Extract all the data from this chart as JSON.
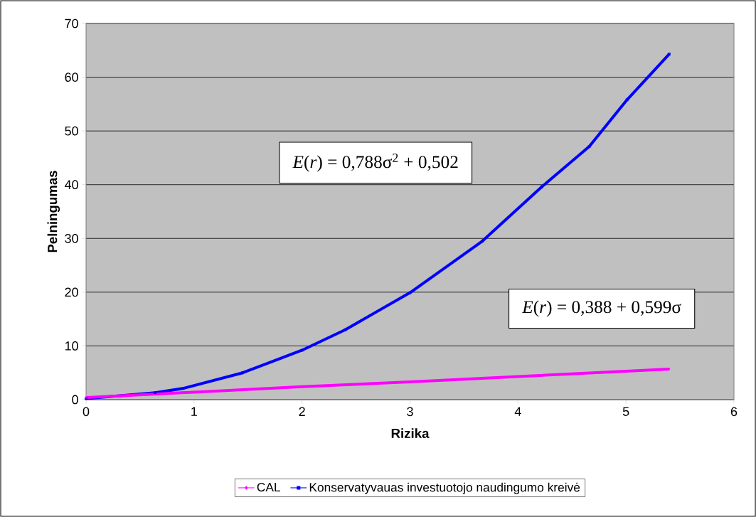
{
  "chart_data": {
    "type": "line",
    "xlabel": "Rizika",
    "ylabel": "Pelningumas",
    "xlim": [
      0,
      6
    ],
    "ylim": [
      0,
      70
    ],
    "xticks": [
      0,
      1,
      2,
      3,
      4,
      5,
      6
    ],
    "yticks": [
      0,
      10,
      20,
      30,
      40,
      50,
      60,
      70
    ],
    "grid": "y",
    "legend": "bottom",
    "line_style": "solid",
    "annotations": [
      "*E*(*r*) = 0,788σ$^{2}$ + 0,502",
      "*E*(*r*) = 0,388 + 0,599σ"
    ],
    "series": [
      {
        "name": "CAL",
        "color": "#ff00ff",
        "marker": "diamond",
        "x": [
          0,
          1,
          2,
          3,
          4,
          5,
          5.4
        ],
        "values": [
          0.4,
          1.4,
          2.4,
          3.3,
          4.3,
          5.3,
          5.7
        ]
      },
      {
        "name": "Konservatyvauas investuotojo naudingumo kreivė",
        "color": "#0000ff",
        "marker": "square",
        "x": [
          0,
          0.64,
          0.9,
          1.45,
          2.0,
          2.4,
          3.0,
          3.67,
          4.22,
          4.66,
          5.01,
          5.4
        ],
        "values": [
          0.2,
          1.3,
          2.1,
          5.0,
          9.2,
          13.0,
          19.9,
          29.5,
          39.6,
          47.1,
          55.8,
          64.3
        ]
      }
    ]
  }
}
